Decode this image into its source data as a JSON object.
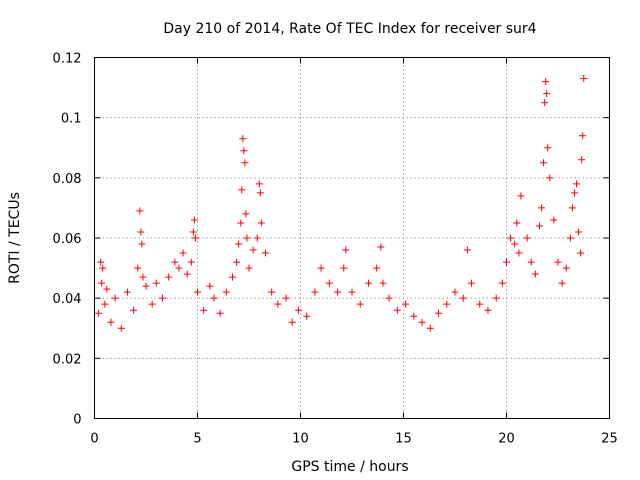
{
  "chart_data": {
    "type": "scatter",
    "title": "Day 210 of 2014, Rate Of TEC Index for receiver sur4",
    "xlabel": "GPS time / hours",
    "ylabel": "ROTI / TECUs",
    "xlim": [
      0,
      25
    ],
    "ylim": [
      0,
      0.12
    ],
    "xticks": [
      0,
      5,
      10,
      15,
      20,
      25
    ],
    "yticks": [
      0,
      0.02,
      0.04,
      0.06,
      0.08,
      0.1,
      0.12
    ],
    "ytick_labels": [
      "0",
      "0.02",
      "0.04",
      "0.06",
      "0.08",
      "0.1",
      "0.12"
    ],
    "grid": true,
    "legend": "none",
    "marker": "plus",
    "color": "#ff0000",
    "series": [
      {
        "x": [
          0.2,
          0.3,
          0.35,
          0.4,
          0.5,
          0.6,
          0.8,
          1.0,
          1.3,
          1.6,
          1.9,
          2.1,
          2.2,
          2.25,
          2.3,
          2.35,
          2.5,
          2.8,
          3.0,
          3.3,
          3.6,
          3.9,
          4.1,
          4.3,
          4.5,
          4.7,
          4.8,
          4.85,
          4.9,
          5.0,
          5.3,
          5.6,
          5.8,
          6.1,
          6.4,
          6.7,
          6.9,
          7.0,
          7.1,
          7.15,
          7.2,
          7.25,
          7.3,
          7.35,
          7.4,
          7.5,
          7.7,
          7.9,
          8.0,
          8.05,
          8.1,
          8.3,
          8.6,
          8.9,
          9.3,
          9.6,
          9.9,
          10.3,
          10.7,
          11.0,
          11.4,
          11.8,
          12.1,
          12.2,
          12.5,
          12.9,
          13.3,
          13.7,
          13.9,
          14.0,
          14.3,
          14.7,
          15.1,
          15.5,
          15.9,
          16.3,
          16.7,
          17.1,
          17.5,
          17.9,
          18.1,
          18.3,
          18.7,
          19.1,
          19.5,
          19.8,
          20.0,
          20.2,
          20.4,
          20.5,
          20.6,
          20.7,
          21.0,
          21.2,
          21.4,
          21.6,
          21.7,
          21.8,
          21.85,
          21.9,
          21.95,
          22.0,
          22.1,
          22.3,
          22.5,
          22.7,
          22.9,
          23.1,
          23.2,
          23.3,
          23.4,
          23.5,
          23.6,
          23.65,
          23.7,
          23.75
        ],
        "y": [
          0.035,
          0.052,
          0.045,
          0.05,
          0.038,
          0.043,
          0.032,
          0.04,
          0.03,
          0.042,
          0.036,
          0.05,
          0.069,
          0.062,
          0.058,
          0.047,
          0.044,
          0.038,
          0.045,
          0.04,
          0.047,
          0.052,
          0.05,
          0.055,
          0.048,
          0.052,
          0.062,
          0.066,
          0.06,
          0.042,
          0.036,
          0.044,
          0.04,
          0.035,
          0.042,
          0.047,
          0.052,
          0.058,
          0.065,
          0.076,
          0.093,
          0.089,
          0.085,
          0.068,
          0.06,
          0.05,
          0.056,
          0.06,
          0.078,
          0.075,
          0.065,
          0.055,
          0.042,
          0.038,
          0.04,
          0.032,
          0.036,
          0.034,
          0.042,
          0.05,
          0.045,
          0.042,
          0.05,
          0.056,
          0.042,
          0.038,
          0.045,
          0.05,
          0.057,
          0.045,
          0.04,
          0.036,
          0.038,
          0.034,
          0.032,
          0.03,
          0.035,
          0.038,
          0.042,
          0.04,
          0.056,
          0.045,
          0.038,
          0.036,
          0.04,
          0.045,
          0.052,
          0.06,
          0.058,
          0.065,
          0.055,
          0.074,
          0.06,
          0.052,
          0.048,
          0.064,
          0.07,
          0.085,
          0.105,
          0.112,
          0.108,
          0.09,
          0.08,
          0.066,
          0.052,
          0.045,
          0.05,
          0.06,
          0.07,
          0.075,
          0.078,
          0.062,
          0.055,
          0.086,
          0.094,
          0.113
        ]
      }
    ]
  }
}
